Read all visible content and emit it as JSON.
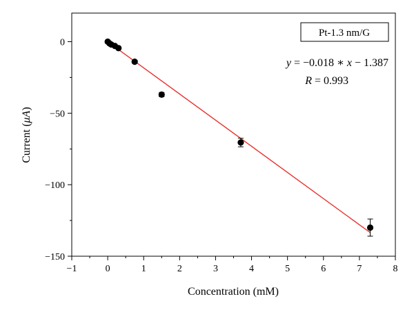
{
  "chart_data": {
    "type": "scatter",
    "xlabel": "Concentration (mM)",
    "ylabel_prefix": "Current (",
    "ylabel_symbol": "μA",
    "ylabel_suffix": ")",
    "xlim": [
      -1,
      8
    ],
    "ylim": [
      -150,
      20
    ],
    "xticks": [
      -1,
      0,
      1,
      2,
      3,
      4,
      5,
      6,
      7,
      8
    ],
    "yticks": [
      0,
      -50,
      -100,
      -150
    ],
    "grid": false,
    "legend": {
      "label": "Pt-1.3 nm/G",
      "position": "top-right"
    },
    "series": [
      {
        "name": "Pt-1.3 nm/G",
        "points": [
          {
            "x": 0.0,
            "y": 0.0,
            "err": 0.8
          },
          {
            "x": 0.05,
            "y": -1.2,
            "err": 0.6
          },
          {
            "x": 0.1,
            "y": -2.0,
            "err": 0.6
          },
          {
            "x": 0.2,
            "y": -3.0,
            "err": 0.6
          },
          {
            "x": 0.3,
            "y": -4.5,
            "err": 0.8
          },
          {
            "x": 0.75,
            "y": -14.0,
            "err": 1.0
          },
          {
            "x": 1.5,
            "y": -37.0,
            "err": 1.5
          },
          {
            "x": 3.7,
            "y": -70.5,
            "err": 3.0
          },
          {
            "x": 7.3,
            "y": -130.0,
            "err": 6.0
          }
        ],
        "color": "#000000"
      }
    ],
    "fit": {
      "slope": -0.018,
      "intercept": -1.387,
      "x_range": [
        0,
        7.3
      ],
      "color": "#e8312b",
      "equation": {
        "y": "y",
        "eq1": " = −0.018 ∗ ",
        "x": "x",
        "eq2": " − 1.387"
      },
      "r": {
        "R": "R",
        "value": " = 0.993"
      }
    }
  }
}
